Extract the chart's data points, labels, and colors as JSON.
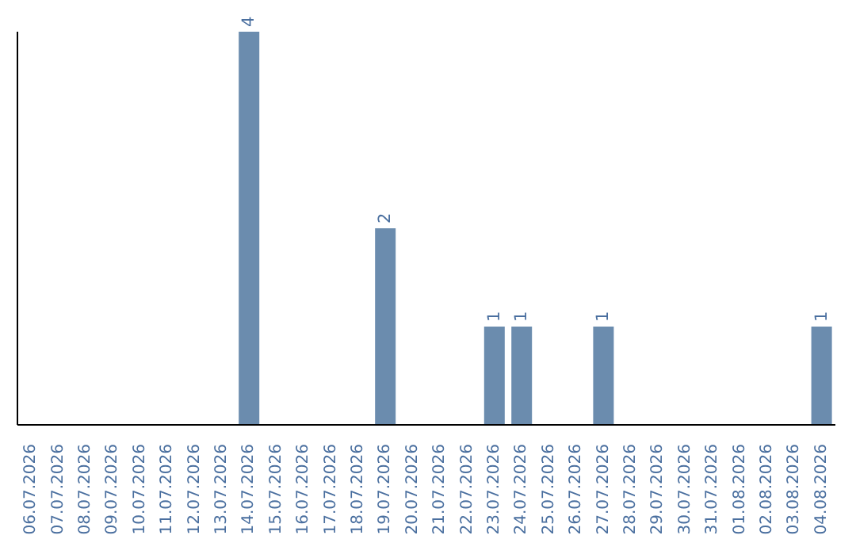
{
  "chart_data": {
    "type": "bar",
    "categories": [
      "06.07.2026",
      "07.07.2026",
      "08.07.2026",
      "09.07.2026",
      "10.07.2026",
      "11.07.2026",
      "12.07.2026",
      "13.07.2026",
      "14.07.2026",
      "15.07.2026",
      "16.07.2026",
      "17.07.2026",
      "18.07.2026",
      "19.07.2026",
      "20.07.2026",
      "21.07.2026",
      "22.07.2026",
      "23.07.2026",
      "24.07.2026",
      "25.07.2026",
      "26.07.2026",
      "27.07.2026",
      "28.07.2026",
      "29.07.2026",
      "30.07.2026",
      "31.07.2026",
      "01.08.2026",
      "02.08.2026",
      "03.08.2026",
      "04.08.2026"
    ],
    "values": [
      0,
      0,
      0,
      0,
      0,
      0,
      0,
      0,
      4,
      0,
      0,
      0,
      0,
      2,
      0,
      0,
      0,
      1,
      1,
      0,
      0,
      1,
      0,
      0,
      0,
      0,
      0,
      0,
      0,
      1
    ],
    "value_labels": [
      null,
      null,
      null,
      null,
      null,
      null,
      null,
      null,
      "4",
      null,
      null,
      null,
      null,
      "2",
      null,
      null,
      null,
      "1",
      "1",
      null,
      null,
      "1",
      null,
      null,
      null,
      null,
      null,
      null,
      null,
      "1"
    ],
    "color": "#6b8cae",
    "tick_labels": "x",
    "grid": false,
    "legend": false
  }
}
